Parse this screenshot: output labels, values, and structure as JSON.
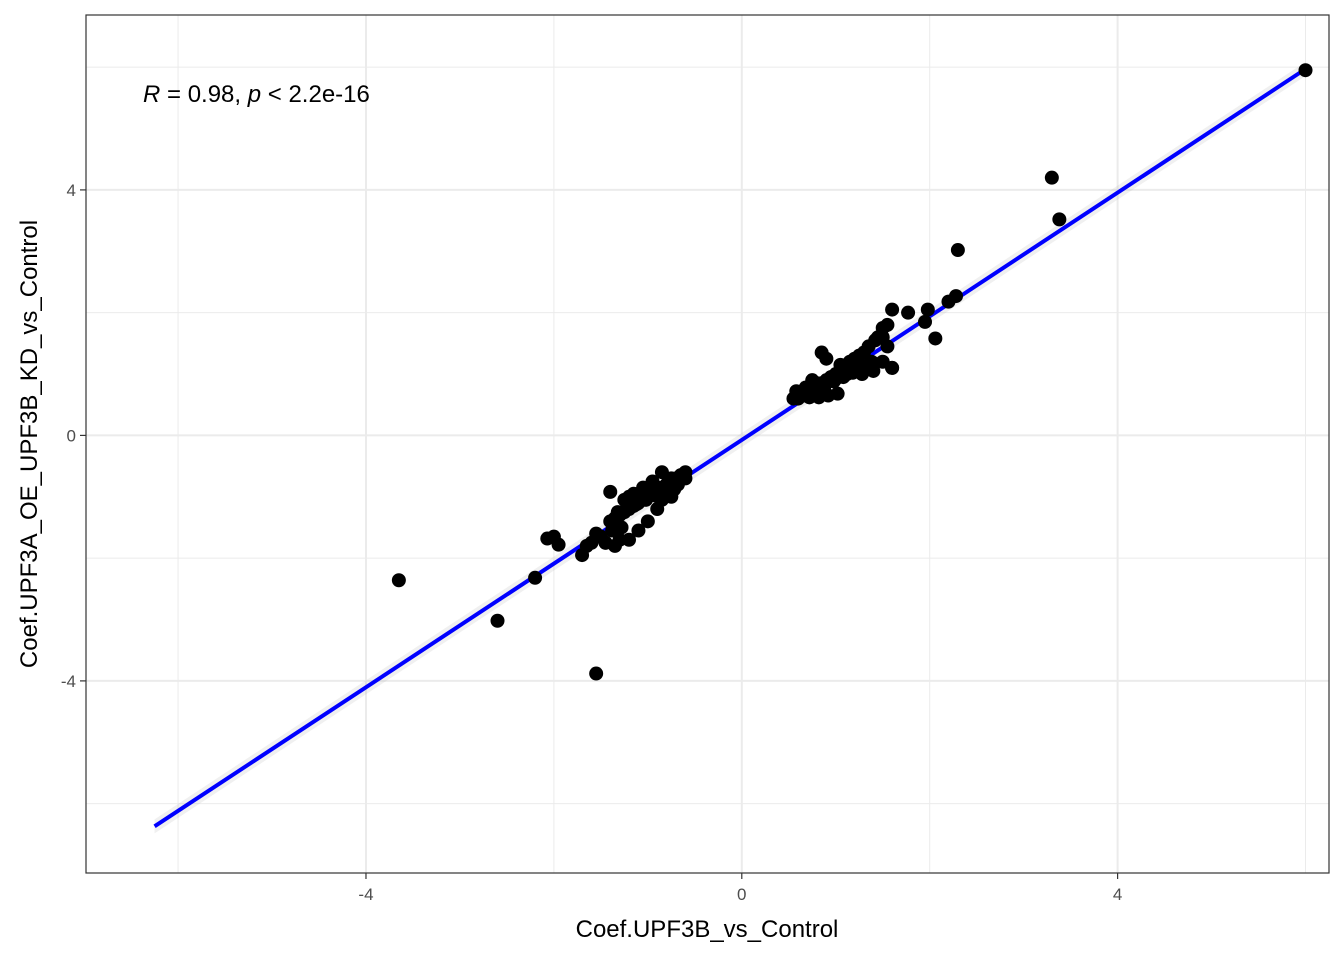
{
  "chart_data": {
    "type": "scatter",
    "xlabel": "Coef.UPF3B_vs_Control",
    "ylabel": "Coef.UPF3A_OE_UPF3B_KD_vs_Control",
    "xlim": [
      -6.98,
      6.25
    ],
    "ylim": [
      -7.13,
      6.85
    ],
    "x_ticks": [
      -4,
      0,
      4
    ],
    "y_ticks": [
      -4,
      0,
      4
    ],
    "x_tick_labels": [
      "-4",
      "0",
      "4"
    ],
    "y_tick_labels": [
      "-4",
      "0",
      "4"
    ],
    "grid": true,
    "annotation": {
      "r_symbol": "R",
      "r_text": " = 0.98, ",
      "p_symbol": "p",
      "p_text": " < 2.2e-16"
    },
    "fit_line": {
      "color": "#0000ff",
      "points": [
        [
          -6.25,
          -6.37
        ],
        [
          6.0,
          5.97
        ]
      ]
    },
    "points": {
      "color": "#000000",
      "x": [
        6.0,
        3.3,
        3.38,
        2.3,
        2.28,
        2.2,
        1.98,
        1.95,
        1.77,
        1.6,
        1.55,
        1.5,
        1.45,
        1.5,
        1.42,
        1.35,
        1.3,
        1.25,
        1.2,
        1.15,
        1.1,
        1.05,
        1.0,
        0.95,
        0.9,
        0.85,
        0.8,
        0.75,
        0.7,
        0.65,
        0.6,
        0.55,
        0.85,
        0.9,
        1.05,
        1.1,
        1.2,
        1.28,
        1.38,
        1.5,
        1.6,
        0.6,
        0.7,
        0.8,
        0.75,
        0.95,
        1.15,
        1.25,
        0.65,
        0.7,
        0.8,
        0.85,
        0.9,
        1.0,
        1.12,
        1.22,
        0.58,
        0.62,
        0.68,
        0.72,
        0.78,
        0.88,
        0.98,
        1.08,
        1.18,
        1.3,
        1.4,
        0.82,
        0.92,
        1.02,
        2.06,
        1.4,
        1.6,
        1.55,
        -0.6,
        -0.65,
        -0.7,
        -0.75,
        -0.8,
        -0.85,
        -0.9,
        -0.95,
        -1.0,
        -1.05,
        -1.1,
        -1.15,
        -1.2,
        -1.25,
        -1.3,
        -1.35,
        -1.4,
        -0.6,
        -0.7,
        -0.8,
        -0.9,
        -1.0,
        -1.1,
        -1.2,
        -0.65,
        -0.75,
        -0.85,
        -0.95,
        -1.05,
        -1.15,
        -1.25,
        -0.68,
        -0.78,
        -0.88,
        -0.98,
        -1.08,
        -1.18,
        -0.72,
        -0.82,
        -0.92,
        -1.02,
        -1.12,
        -1.22,
        -1.32,
        -1.28,
        -1.38,
        -1.45,
        -1.5,
        -1.55,
        -1.3,
        -1.35,
        -1.45,
        -1.2,
        -1.1,
        -1.0,
        -0.9,
        -0.75,
        -0.85,
        -1.4,
        -1.2,
        -1.6,
        -1.65,
        -2.0,
        -2.07,
        -1.95,
        -1.7,
        -2.2,
        -2.6,
        -3.65,
        -1.55
      ],
      "y": [
        5.95,
        4.2,
        3.52,
        3.02,
        2.27,
        2.18,
        2.05,
        1.85,
        2.0,
        2.05,
        1.8,
        1.75,
        1.6,
        1.6,
        1.55,
        1.45,
        1.35,
        1.3,
        1.25,
        1.2,
        1.1,
        1.05,
        1.0,
        0.95,
        0.9,
        0.85,
        0.8,
        0.75,
        0.7,
        0.65,
        0.6,
        0.6,
        1.35,
        1.25,
        1.15,
        1.1,
        1.05,
        1.0,
        1.2,
        1.2,
        1.1,
        0.7,
        0.78,
        0.85,
        0.9,
        0.95,
        1.05,
        1.15,
        0.65,
        0.72,
        0.75,
        0.82,
        0.88,
        0.92,
        1.0,
        1.08,
        0.72,
        0.68,
        0.78,
        0.62,
        0.7,
        0.8,
        0.88,
        0.95,
        1.02,
        1.12,
        1.18,
        0.62,
        0.65,
        0.68,
        1.58,
        1.05,
        1.1,
        1.45,
        -0.6,
        -0.65,
        -0.7,
        -0.75,
        -0.8,
        -0.85,
        -0.9,
        -0.95,
        -1.0,
        -1.05,
        -1.1,
        -1.15,
        -1.2,
        -1.25,
        -1.3,
        -1.35,
        -1.4,
        -0.7,
        -0.75,
        -0.8,
        -0.85,
        -0.9,
        -0.95,
        -1.0,
        -0.65,
        -0.7,
        -0.6,
        -0.75,
        -0.85,
        -0.95,
        -1.05,
        -0.8,
        -0.85,
        -0.9,
        -0.95,
        -1.0,
        -1.05,
        -0.88,
        -0.92,
        -0.98,
        -1.05,
        -1.12,
        -1.18,
        -1.25,
        -1.5,
        -1.55,
        -1.75,
        -1.65,
        -1.6,
        -1.7,
        -1.8,
        -1.75,
        -1.7,
        -1.55,
        -1.4,
        -1.2,
        -1.0,
        -1.05,
        -0.92,
        -1.12,
        -1.75,
        -1.8,
        -1.65,
        -1.68,
        -1.78,
        -1.95,
        -2.32,
        -3.02,
        -2.36,
        -3.88
      ]
    }
  }
}
